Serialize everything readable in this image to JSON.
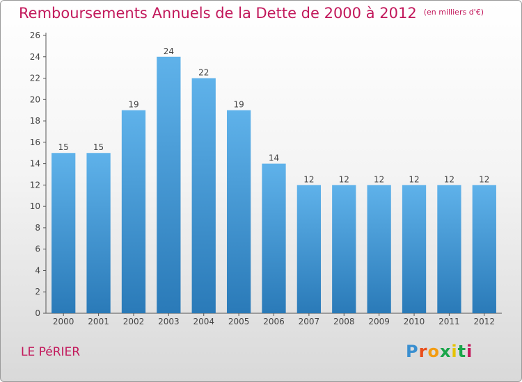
{
  "header": {
    "title": "Remboursements Annuels de la Dette de 2000 à 2012",
    "unit": "(en milliers d'€)"
  },
  "footer": {
    "commune": "LE PéRIER",
    "logo": {
      "letters": [
        "P",
        "r",
        "o",
        "x",
        "i",
        "t",
        "i"
      ],
      "colors": [
        "#3a8fd0",
        "#e94e1b",
        "#f39c12",
        "#1aa54a",
        "#e6c300",
        "#1aa54a",
        "#c2185b"
      ]
    }
  },
  "colors": {
    "bar_light": "#5fb2ea",
    "bar_dark": "#2a7ab8",
    "axis": "#555555",
    "title": "#c2185b"
  },
  "chart_data": {
    "type": "bar",
    "categories": [
      "2000",
      "2001",
      "2002",
      "2003",
      "2004",
      "2005",
      "2006",
      "2007",
      "2008",
      "2009",
      "2010",
      "2011",
      "2012"
    ],
    "values": [
      15,
      15,
      19,
      24,
      22,
      19,
      14,
      12,
      12,
      12,
      12,
      12,
      12
    ],
    "data_labels": [
      "15",
      "15",
      "19",
      "24",
      "22",
      "19",
      "14",
      "12",
      "12",
      "12",
      "12",
      "12",
      "12"
    ],
    "ylim": [
      0,
      26
    ],
    "yticks": [
      0,
      2,
      4,
      6,
      8,
      10,
      12,
      14,
      16,
      18,
      20,
      22,
      24,
      26
    ],
    "ytick_labels": [
      "0",
      "2",
      "4",
      "6",
      "8",
      "10",
      "12",
      "14",
      "16",
      "18",
      "20",
      "22",
      "24",
      "26"
    ],
    "grid": false
  }
}
